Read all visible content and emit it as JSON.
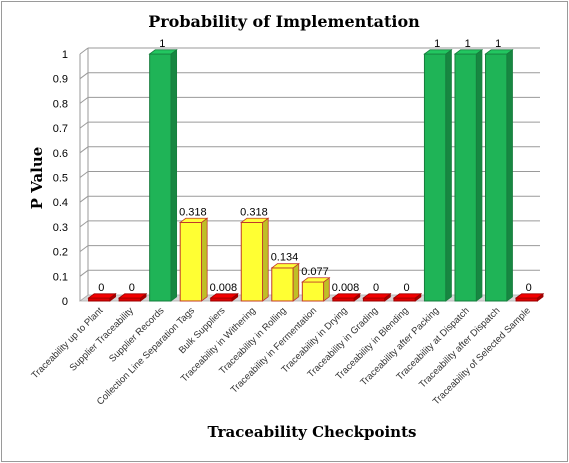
{
  "chart_data": {
    "type": "bar",
    "title": "Probability of Implementation",
    "xlabel": "Traceability Checkpoints",
    "ylabel": "P Value",
    "ylim": [
      0,
      1
    ],
    "yticks": [
      "0",
      "0.1",
      "0.2",
      "0.3",
      "0.4",
      "0.5",
      "0.6",
      "0.7",
      "0.8",
      "0.9",
      "1"
    ],
    "grid": true,
    "categories": [
      "Traceability up to Plant",
      "Supplier Traceability",
      "Supplier Records",
      "Collection Line Separation Tags",
      "Bulk Suppliers",
      "Traceability in Withering",
      "Traceability in Rolling",
      "Traceability in Fermentation",
      "Traceability in Drying",
      "Traceability in Grading",
      "Traceability in Blending",
      "Traceability after Packing",
      "Traceability at Dispatch",
      "Traceability after Dispatch",
      "Traceability of Selected Sample"
    ],
    "values": [
      0,
      0,
      1,
      0.318,
      0.008,
      0.318,
      0.134,
      0.077,
      0.008,
      0,
      0,
      1,
      1,
      1,
      0
    ],
    "value_labels": [
      "0",
      "0",
      "1",
      "0.318",
      "0.008",
      "0.318",
      "0.134",
      "0.077",
      "0.008",
      "0",
      "0",
      "1",
      "1",
      "1",
      "0"
    ],
    "colors": {
      "high": "#1fb457",
      "mid": "#ffff33",
      "low": "#dd0000",
      "mid_border": "#c0392b"
    }
  }
}
